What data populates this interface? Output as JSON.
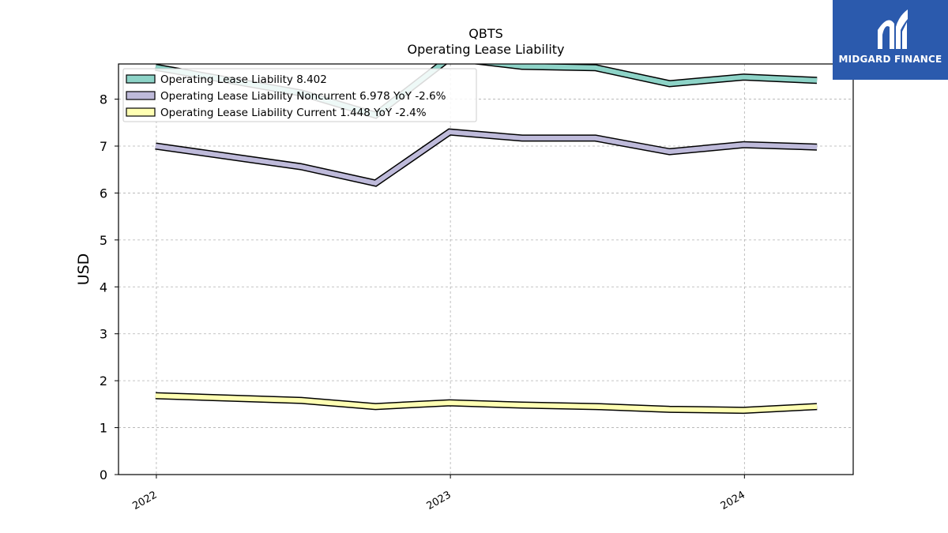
{
  "chart_data": {
    "type": "line",
    "title": "QBTS",
    "subtitle": "Operating Lease Liability",
    "ylabel": "USD",
    "xlabel": "",
    "ylim": [
      0,
      8.75
    ],
    "yticks": [
      0,
      1,
      2,
      3,
      4,
      5,
      6,
      7,
      8
    ],
    "xlim": [
      "2021-11-15",
      "2024-05-15"
    ],
    "xticks": [
      {
        "date": "2022-01-01",
        "label": "2022"
      },
      {
        "date": "2023-01-01",
        "label": "2023"
      },
      {
        "date": "2024-01-01",
        "label": "2024"
      }
    ],
    "grid": true,
    "legend_position": "top-left",
    "x": [
      "2021-12-31",
      "2022-06-30",
      "2022-09-30",
      "2022-12-31",
      "2023-03-31",
      "2023-06-30",
      "2023-09-30",
      "2023-12-31",
      "2024-03-31"
    ],
    "series": [
      {
        "name": "Operating Lease Liability",
        "legend_label": "Operating Lease Liability  8.402",
        "color": "#8dd3c7",
        "values": [
          8.68,
          8.13,
          7.66,
          8.88,
          8.7,
          8.67,
          8.33,
          8.47,
          8.4
        ]
      },
      {
        "name": "Operating Lease Liability Noncurrent",
        "legend_label": "Operating Lease Liability Noncurrent  6.978 YoY -2.6%",
        "color": "#bebada",
        "values": [
          7.0,
          6.56,
          6.21,
          7.3,
          7.17,
          7.17,
          6.88,
          7.03,
          6.98
        ]
      },
      {
        "name": "Operating Lease Liability Current",
        "legend_label": "Operating Lease Liability Current  1.448 YoY -2.4%",
        "color": "#ffffb3",
        "values": [
          1.68,
          1.58,
          1.45,
          1.53,
          1.48,
          1.45,
          1.39,
          1.37,
          1.45
        ]
      }
    ]
  },
  "logo": {
    "text": "MIDGARD FINANCE",
    "background": "#2b5aad"
  }
}
